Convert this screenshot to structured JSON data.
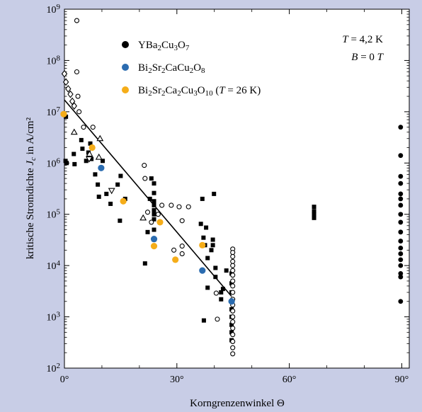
{
  "chart_data": {
    "type": "scatter",
    "title": "",
    "xlabel": "Korngrenzenwinkel Θ",
    "ylabel": "kritische Stromdichte Jc in A/cm²",
    "y_scale": "log",
    "xlim": [
      0,
      92
    ],
    "ylim": [
      100,
      1000000000
    ],
    "x_ticks": [
      {
        "value": 0,
        "label": "0°"
      },
      {
        "value": 30,
        "label": "30°"
      },
      {
        "value": 60,
        "label": "60°"
      },
      {
        "value": 90,
        "label": "90°"
      }
    ],
    "y_ticks": [
      {
        "value": 100,
        "base": "10",
        "exp": "2"
      },
      {
        "value": 1000,
        "base": "10",
        "exp": "3"
      },
      {
        "value": 10000,
        "base": "10",
        "exp": "4"
      },
      {
        "value": 100000,
        "base": "10",
        "exp": "5"
      },
      {
        "value": 1000000,
        "base": "10",
        "exp": "6"
      },
      {
        "value": 10000000,
        "base": "10",
        "exp": "7"
      },
      {
        "value": 100000000,
        "base": "10",
        "exp": "8"
      },
      {
        "value": 1000000000,
        "base": "10",
        "exp": "9"
      }
    ],
    "conditions": [
      "T = 4,2 K",
      "B = 0 T"
    ],
    "legend": [
      {
        "label": "YBa2Cu3O7",
        "marker": "circle",
        "color": "#000000"
      },
      {
        "label": "Bi2Sr2CaCu2O8",
        "marker": "circle",
        "color": "#2b6cb0"
      },
      {
        "label": "Bi2Sr2Ca2Cu3O10 (T = 26 K)",
        "marker": "circle",
        "color": "#f5ad19"
      }
    ],
    "series": [
      {
        "name": "YBa2Cu3O7",
        "color": "#000000",
        "points": [
          {
            "m": "s",
            "x": 0.4,
            "y": 8000000
          },
          {
            "m": "s",
            "x": 0.3,
            "y": 1100000
          },
          {
            "m": "s",
            "x": 0.6,
            "y": 1000000
          },
          {
            "m": "s",
            "x": 2.5,
            "y": 1500000
          },
          {
            "m": "s",
            "x": 2.7,
            "y": 950000
          },
          {
            "m": "s",
            "x": 4.5,
            "y": 2800000
          },
          {
            "m": "s",
            "x": 4.8,
            "y": 1900000
          },
          {
            "m": "s",
            "x": 5.8,
            "y": 1100000
          },
          {
            "m": "s",
            "x": 6.4,
            "y": 1600000
          },
          {
            "m": "s",
            "x": 6.9,
            "y": 2400000
          },
          {
            "m": "s",
            "x": 7.2,
            "y": 1200000
          },
          {
            "m": "s",
            "x": 8.2,
            "y": 600000
          },
          {
            "m": "s",
            "x": 8.9,
            "y": 380000
          },
          {
            "m": "s",
            "x": 9.2,
            "y": 220000
          },
          {
            "m": "s",
            "x": 10.2,
            "y": 1100000
          },
          {
            "m": "s",
            "x": 11.2,
            "y": 250000
          },
          {
            "m": "s",
            "x": 12.3,
            "y": 160000
          },
          {
            "m": "s",
            "x": 14.2,
            "y": 380000
          },
          {
            "m": "s",
            "x": 15.0,
            "y": 560000
          },
          {
            "m": "s",
            "x": 14.8,
            "y": 75000
          },
          {
            "m": "s",
            "x": 16.2,
            "y": 200000
          },
          {
            "m": "s",
            "x": 21.5,
            "y": 11000
          },
          {
            "m": "s",
            "x": 22.2,
            "y": 45000
          },
          {
            "m": "s",
            "x": 22.8,
            "y": 200000
          },
          {
            "m": "s",
            "x": 23.2,
            "y": 500000
          },
          {
            "m": "s",
            "x": 23.9,
            "y": 400000
          },
          {
            "m": "s",
            "x": 23.9,
            "y": 260000
          },
          {
            "m": "s",
            "x": 23.9,
            "y": 180000
          },
          {
            "m": "s",
            "x": 23.9,
            "y": 120000
          },
          {
            "m": "s",
            "x": 23.9,
            "y": 80000
          },
          {
            "m": "s",
            "x": 23.9,
            "y": 50000
          },
          {
            "m": "s",
            "x": 23.9,
            "y": 32000
          },
          {
            "m": "s",
            "x": 23.9,
            "y": 150000
          },
          {
            "m": "s",
            "x": 23.9,
            "y": 100000
          },
          {
            "m": "s",
            "x": 36.4,
            "y": 65000
          },
          {
            "m": "s",
            "x": 36.8,
            "y": 200000
          },
          {
            "m": "s",
            "x": 37.1,
            "y": 35000
          },
          {
            "m": "s",
            "x": 37.5,
            "y": 25000
          },
          {
            "m": "s",
            "x": 37.2,
            "y": 850
          },
          {
            "m": "s",
            "x": 37.8,
            "y": 55000
          },
          {
            "m": "s",
            "x": 38.2,
            "y": 14000
          },
          {
            "m": "s",
            "x": 38.2,
            "y": 3700
          },
          {
            "m": "s",
            "x": 39.2,
            "y": 20000
          },
          {
            "m": "s",
            "x": 39.6,
            "y": 32000
          },
          {
            "m": "s",
            "x": 39.6,
            "y": 25000
          },
          {
            "m": "s",
            "x": 39.9,
            "y": 250000
          },
          {
            "m": "s",
            "x": 40.3,
            "y": 9000
          },
          {
            "m": "s",
            "x": 40.3,
            "y": 6000
          },
          {
            "m": "s",
            "x": 41.8,
            "y": 3000
          },
          {
            "m": "s",
            "x": 41.8,
            "y": 2200
          },
          {
            "m": "s",
            "x": 42.3,
            "y": 3500
          },
          {
            "m": "s",
            "x": 43.2,
            "y": 8000
          },
          {
            "m": "s",
            "x": 44.6,
            "y": 7000
          },
          {
            "m": "s",
            "x": 44.6,
            "y": 4500
          },
          {
            "m": "s",
            "x": 44.6,
            "y": 3000
          },
          {
            "m": "s",
            "x": 44.6,
            "y": 2000
          },
          {
            "m": "s",
            "x": 44.6,
            "y": 1400
          },
          {
            "m": "s",
            "x": 44.6,
            "y": 1000
          },
          {
            "m": "s",
            "x": 44.6,
            "y": 700
          },
          {
            "m": "s",
            "x": 44.6,
            "y": 500
          },
          {
            "m": "s",
            "x": 44.6,
            "y": 350
          },
          {
            "m": "s",
            "x": 66.6,
            "y": 140000
          },
          {
            "m": "s",
            "x": 66.6,
            "y": 115000
          },
          {
            "m": "s",
            "x": 66.6,
            "y": 100000
          },
          {
            "m": "s",
            "x": 66.6,
            "y": 85000
          },
          {
            "m": "c",
            "x": 89.7,
            "y": 5000000
          },
          {
            "m": "c",
            "x": 89.7,
            "y": 1400000
          },
          {
            "m": "c",
            "x": 89.7,
            "y": 550000
          },
          {
            "m": "c",
            "x": 89.7,
            "y": 400000
          },
          {
            "m": "c",
            "x": 89.7,
            "y": 250000
          },
          {
            "m": "c",
            "x": 89.7,
            "y": 200000
          },
          {
            "m": "c",
            "x": 89.7,
            "y": 150000
          },
          {
            "m": "c",
            "x": 89.7,
            "y": 100000
          },
          {
            "m": "c",
            "x": 89.7,
            "y": 70000
          },
          {
            "m": "c",
            "x": 89.7,
            "y": 45000
          },
          {
            "m": "c",
            "x": 89.7,
            "y": 30000
          },
          {
            "m": "c",
            "x": 89.7,
            "y": 22000
          },
          {
            "m": "c",
            "x": 89.7,
            "y": 17000
          },
          {
            "m": "c",
            "x": 89.7,
            "y": 13000
          },
          {
            "m": "c",
            "x": 89.7,
            "y": 10000
          },
          {
            "m": "c",
            "x": 89.7,
            "y": 7000
          },
          {
            "m": "c",
            "x": 89.7,
            "y": 6000
          },
          {
            "m": "c",
            "x": 89.7,
            "y": 2000
          },
          {
            "m": "o",
            "x": 3.3,
            "y": 600000000
          },
          {
            "m": "o",
            "x": 3.3,
            "y": 60000000
          },
          {
            "m": "o",
            "x": 3.6,
            "y": 20000000
          },
          {
            "m": "o",
            "x": 3.9,
            "y": 10000000
          },
          {
            "m": "o",
            "x": 5.1,
            "y": 5000000
          },
          {
            "m": "o",
            "x": 7.6,
            "y": 5000000
          },
          {
            "m": "o",
            "x": 21.3,
            "y": 900000
          },
          {
            "m": "o",
            "x": 21.5,
            "y": 500000
          },
          {
            "m": "o",
            "x": 22.2,
            "y": 110000
          },
          {
            "m": "o",
            "x": 23.2,
            "y": 70000
          },
          {
            "m": "o",
            "x": 25.0,
            "y": 100000
          },
          {
            "m": "o",
            "x": 26.0,
            "y": 150000
          },
          {
            "m": "o",
            "x": 28.5,
            "y": 150000
          },
          {
            "m": "o",
            "x": 29.2,
            "y": 20000
          },
          {
            "m": "o",
            "x": 30.6,
            "y": 140000
          },
          {
            "m": "o",
            "x": 31.4,
            "y": 75000
          },
          {
            "m": "o",
            "x": 31.4,
            "y": 24000
          },
          {
            "m": "o",
            "x": 31.4,
            "y": 17000
          },
          {
            "m": "o",
            "x": 33.1,
            "y": 140000
          },
          {
            "m": "o",
            "x": 40.5,
            "y": 2900
          },
          {
            "m": "o",
            "x": 40.8,
            "y": 900
          },
          {
            "m": "o",
            "x": 44.9,
            "y": 21000
          },
          {
            "m": "o",
            "x": 44.9,
            "y": 18000
          },
          {
            "m": "o",
            "x": 44.9,
            "y": 15000
          },
          {
            "m": "o",
            "x": 44.9,
            "y": 12000
          },
          {
            "m": "o",
            "x": 44.9,
            "y": 10000
          },
          {
            "m": "o",
            "x": 44.9,
            "y": 8000
          },
          {
            "m": "o",
            "x": 44.9,
            "y": 6500
          },
          {
            "m": "o",
            "x": 44.9,
            "y": 5000
          },
          {
            "m": "o",
            "x": 44.9,
            "y": 4000
          },
          {
            "m": "o",
            "x": 44.9,
            "y": 3000
          },
          {
            "m": "o",
            "x": 44.9,
            "y": 2200
          },
          {
            "m": "o",
            "x": 44.9,
            "y": 1700
          },
          {
            "m": "o",
            "x": 44.9,
            "y": 1300
          },
          {
            "m": "o",
            "x": 44.9,
            "y": 1000
          },
          {
            "m": "o",
            "x": 44.9,
            "y": 800
          },
          {
            "m": "o",
            "x": 44.9,
            "y": 600
          },
          {
            "m": "o",
            "x": 44.9,
            "y": 450
          },
          {
            "m": "o",
            "x": 44.9,
            "y": 330
          },
          {
            "m": "o",
            "x": 44.9,
            "y": 250
          },
          {
            "m": "o",
            "x": 44.9,
            "y": 190
          },
          {
            "m": "d",
            "x": 0.0,
            "y": 55000000
          },
          {
            "m": "d",
            "x": 0.4,
            "y": 38000000
          },
          {
            "m": "d",
            "x": 1.0,
            "y": 28000000
          },
          {
            "m": "d",
            "x": 1.6,
            "y": 22000000
          },
          {
            "m": "d",
            "x": 2.1,
            "y": 16000000
          },
          {
            "m": "d",
            "x": 2.6,
            "y": 13000000
          },
          {
            "m": "t",
            "x": 2.6,
            "y": 4000000
          },
          {
            "m": "t",
            "x": 6.7,
            "y": 1500000
          },
          {
            "m": "t",
            "x": 9.5,
            "y": 3000000
          },
          {
            "m": "t",
            "x": 9.2,
            "y": 1300000
          },
          {
            "m": "t",
            "x": 21.0,
            "y": 85000
          },
          {
            "m": "v",
            "x": 12.6,
            "y": 290000
          },
          {
            "m": "v",
            "x": 6.6,
            "y": 1200000
          }
        ]
      },
      {
        "name": "Bi2Sr2CaCu2O8",
        "color": "#2b6cb0",
        "points": [
          {
            "m": "c",
            "x": 9.8,
            "y": 800000
          },
          {
            "m": "c",
            "x": 23.9,
            "y": 33000
          },
          {
            "m": "c",
            "x": 36.8,
            "y": 8000
          },
          {
            "m": "c",
            "x": 44.6,
            "y": 2000
          }
        ]
      },
      {
        "name": "Bi2Sr2Ca2Cu3O10 (T = 26 K)",
        "color": "#f5ad19",
        "points": [
          {
            "m": "c",
            "x": -0.2,
            "y": 9000000
          },
          {
            "m": "c",
            "x": 7.4,
            "y": 2000000
          },
          {
            "m": "c",
            "x": 15.7,
            "y": 180000
          },
          {
            "m": "c",
            "x": 23.9,
            "y": 24000
          },
          {
            "m": "c",
            "x": 25.5,
            "y": 70000
          },
          {
            "m": "c",
            "x": 29.6,
            "y": 13000
          },
          {
            "m": "c",
            "x": 36.8,
            "y": 25000
          }
        ]
      }
    ],
    "fit_line": {
      "x": [
        0,
        44.6
      ],
      "y": [
        17000000,
        2500
      ]
    }
  }
}
